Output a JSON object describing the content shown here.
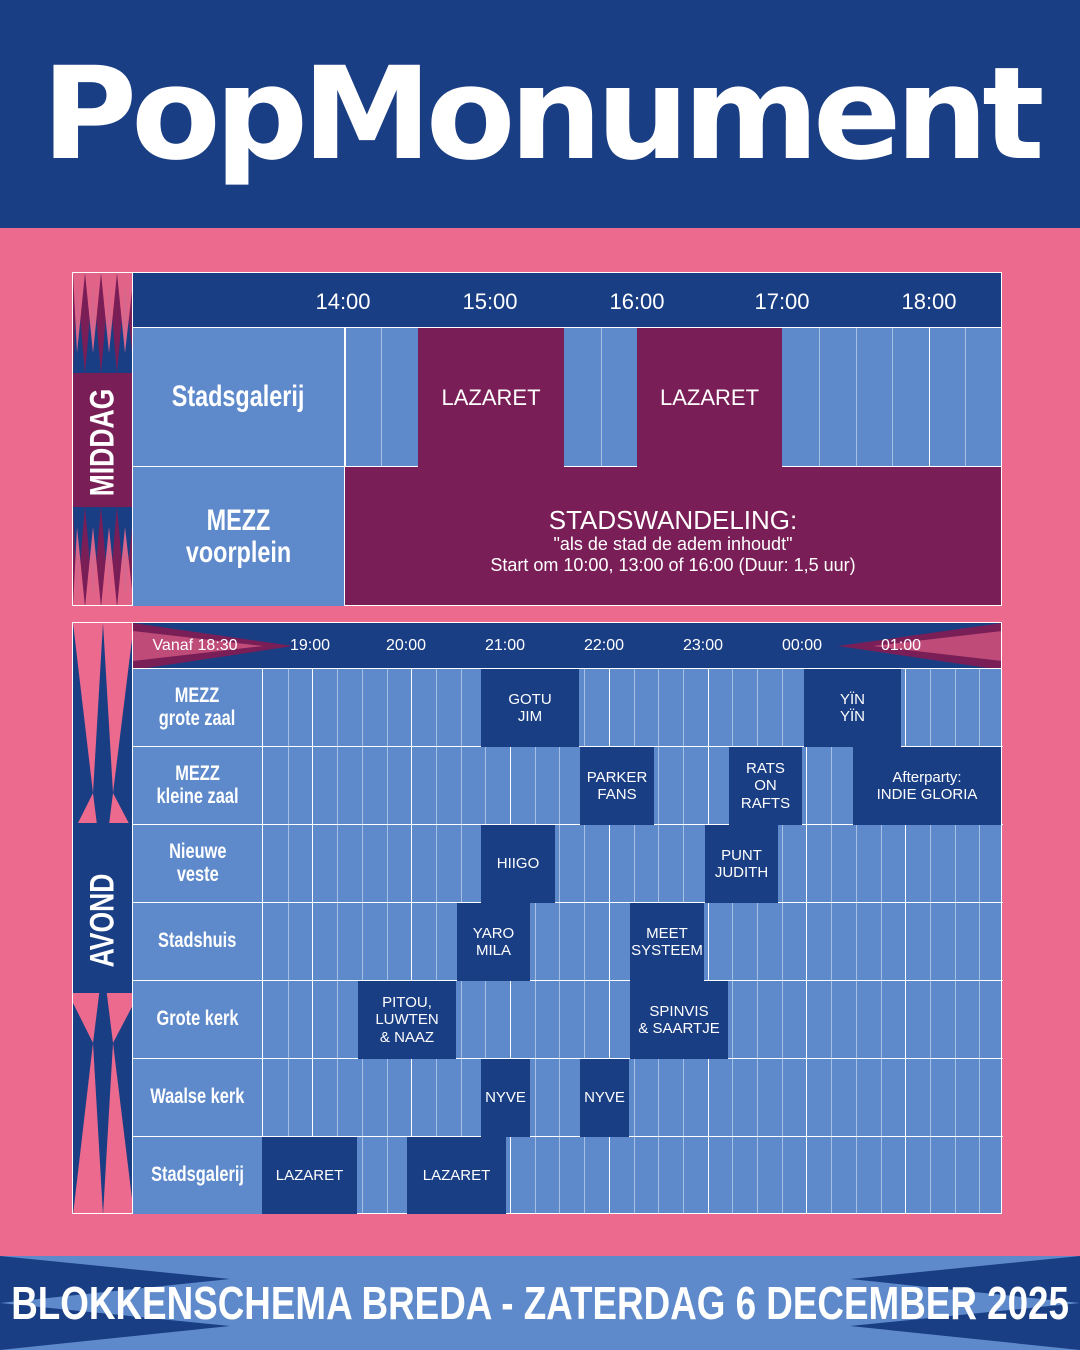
{
  "brand": "PopMonument",
  "colors": {
    "navy": "#1A3E84",
    "pink": "#EC6A8E",
    "purple": "#7A1E57",
    "blue": "#5E8ACB"
  },
  "middag": {
    "label": "MIDDAG",
    "times": [
      "14:00",
      "15:00",
      "16:00",
      "17:00",
      "18:00"
    ],
    "venues": [
      "Stadsgalerij",
      "MEZZ\nvoorplein"
    ],
    "blocks": [
      {
        "text": "LAZARET"
      },
      {
        "text": "LAZARET"
      }
    ],
    "walk": {
      "title": "STADSWANDELING:",
      "subtitle": "\"als de stad de adem inhoudt\"",
      "detail": "Start om 10:00, 13:00 of 16:00 (Duur: 1,5 uur)"
    }
  },
  "avond": {
    "label": "AVOND",
    "start_label": "Vanaf 18:30",
    "times": [
      "19:00",
      "20:00",
      "21:00",
      "22:00",
      "23:00",
      "00:00",
      "01:00"
    ],
    "venues": [
      "MEZZ\ngrote zaal",
      "MEZZ\nkleine zaal",
      "Nieuwe\nveste",
      "Stadshuis",
      "Grote kerk",
      "Waalse kerk",
      "Stadsgalerij"
    ],
    "blocks": [
      {
        "text": "GOTU\nJIM"
      },
      {
        "text": "YÏN\nYÏN"
      },
      {
        "text": "PARKER\nFANS"
      },
      {
        "text": "RATS\nON\nRAFTS"
      },
      {
        "text": "Afterparty:\nINDIE GLORIA"
      },
      {
        "text": "HIIGO"
      },
      {
        "text": "PUNT\nJUDITH"
      },
      {
        "text": "YARO\nMILA"
      },
      {
        "text": "MEET\nSYSTEEM"
      },
      {
        "text": "PITOU,\nLUWTEN\n& NAAZ"
      },
      {
        "text": "SPINVIS\n& SAARTJE"
      },
      {
        "text": "NYVE"
      },
      {
        "text": "NYVE"
      },
      {
        "text": "LAZARET"
      },
      {
        "text": "LAZARET"
      }
    ]
  },
  "footer": "BLOKKENSCHEMA BREDA - ZATERDAG 6 DECEMBER 2025"
}
